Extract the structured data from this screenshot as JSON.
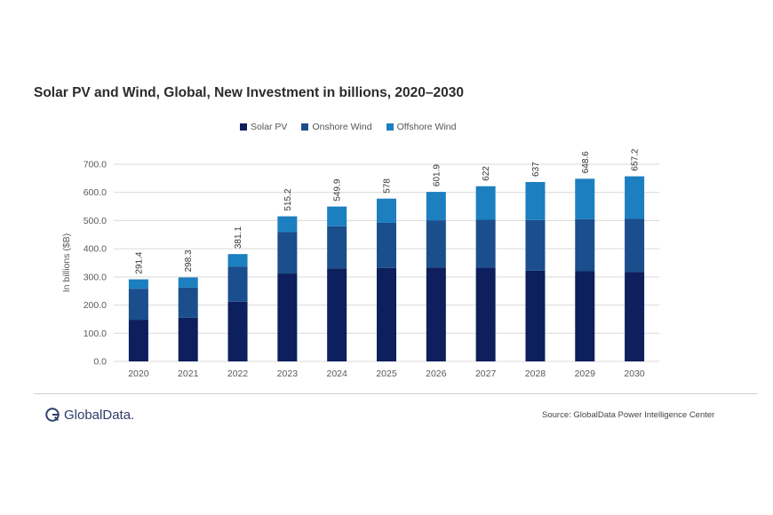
{
  "chart_data": {
    "type": "bar",
    "stacked": true,
    "title": "Solar PV and Wind, Global, New Investment in billions, 2020–2030",
    "ylabel": "In billions ($B)",
    "xlabel": "",
    "ylim": [
      0,
      700
    ],
    "yticks": [
      "0.0",
      "100.0",
      "200.0",
      "300.0",
      "400.0",
      "500.0",
      "600.0",
      "700.0"
    ],
    "grid": true,
    "legend_position": "top",
    "categories": [
      "2020",
      "2021",
      "2022",
      "2023",
      "2024",
      "2025",
      "2026",
      "2027",
      "2028",
      "2029",
      "2030"
    ],
    "series": [
      {
        "name": "Solar PV",
        "color": "#0d1f5c",
        "values": [
          148,
          155,
          212,
          312,
          330,
          332,
          333,
          333,
          322,
          320,
          318
        ]
      },
      {
        "name": "Onshore Wind",
        "color": "#1a4e8c",
        "values": [
          110,
          107,
          125,
          148,
          150,
          160,
          168,
          170,
          180,
          185,
          188
        ]
      },
      {
        "name": "Offshore Wind",
        "color": "#1c7fc0",
        "values": [
          33.4,
          36.3,
          44.1,
          55.2,
          69.9,
          86,
          100.9,
          119,
          135,
          143.6,
          151.2
        ]
      }
    ],
    "totals": [
      "291.4",
      "298.3",
      "381.1",
      "515.2",
      "549.9",
      "578",
      "601.9",
      "622",
      "637",
      "648.6",
      "657.2"
    ]
  },
  "footer": {
    "logo_text": "GlobalData.",
    "source": "Source: GlobalData Power Intelligence Center"
  }
}
